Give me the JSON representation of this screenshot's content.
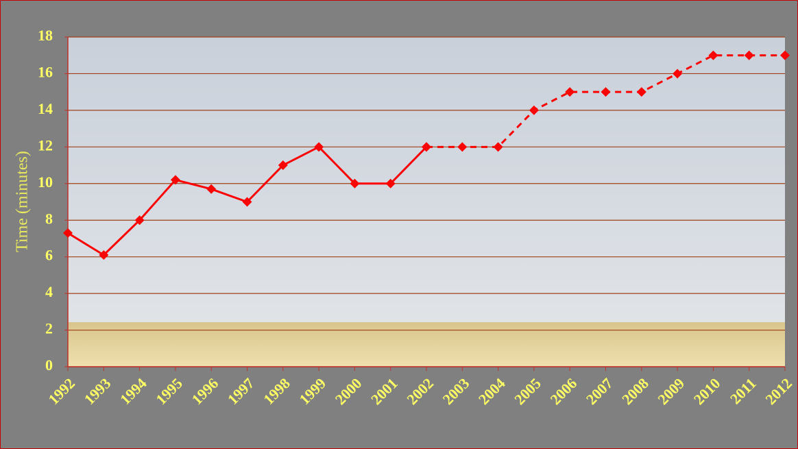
{
  "chart_data": {
    "type": "line",
    "y_label": "Time (minutes)",
    "categories": [
      "1992",
      "1993",
      "1994",
      "1995",
      "1996",
      "1997",
      "1998",
      "1999",
      "2000",
      "2001",
      "2002",
      "2003",
      "2004",
      "2005",
      "2006",
      "2007",
      "2008",
      "2009",
      "2010",
      "2011",
      "2012"
    ],
    "series": [
      {
        "color": "#ff0000",
        "dashed": false,
        "values": [
          7.3,
          6.1,
          8,
          10.2,
          9.7,
          9,
          11,
          12,
          10,
          10,
          12,
          null,
          null,
          null,
          null,
          null,
          null,
          null,
          null,
          null,
          null
        ]
      },
      {
        "color": "#ff0000",
        "dashed": true,
        "values": [
          null,
          null,
          null,
          null,
          null,
          null,
          null,
          null,
          null,
          null,
          12,
          12,
          12,
          14,
          15,
          15,
          15,
          16,
          17,
          17,
          17
        ]
      }
    ],
    "ylim": [
      0,
      18
    ],
    "yticks": [
      0,
      2,
      4,
      6,
      8,
      10,
      12,
      14,
      16,
      18
    ],
    "grid": true
  }
}
